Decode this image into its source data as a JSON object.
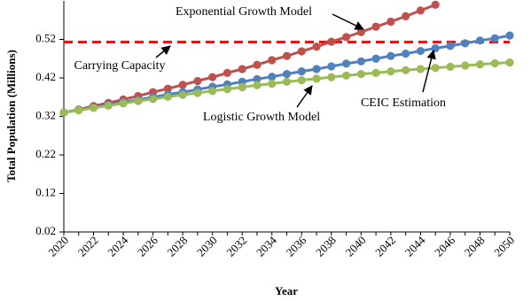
{
  "chart_data": {
    "type": "line",
    "y_label": "Total Population (Millions)",
    "x_label": "Year",
    "x": [
      2020,
      2021,
      2022,
      2023,
      2024,
      2025,
      2026,
      2027,
      2028,
      2029,
      2030,
      2031,
      2032,
      2033,
      2034,
      2035,
      2036,
      2037,
      2038,
      2039,
      2040,
      2041,
      2042,
      2043,
      2044,
      2045,
      2046,
      2047,
      2048,
      2049,
      2050
    ],
    "series": [
      {
        "name": "Exponential Growth Model",
        "color": "#c0504d",
        "values": [
          0.33,
          0.338,
          0.347,
          0.355,
          0.364,
          0.373,
          0.383,
          0.392,
          0.402,
          0.412,
          0.422,
          0.433,
          0.443,
          0.454,
          0.466,
          0.477,
          0.489,
          0.501,
          0.514,
          0.526,
          0.539,
          0.553,
          0.566,
          0.58,
          0.595,
          0.61,
          null,
          null,
          null,
          null,
          null
        ]
      },
      {
        "name": "CEIC Estimation",
        "color": "#4f81bd",
        "values": [
          0.33,
          0.337,
          0.343,
          0.35,
          0.357,
          0.363,
          0.37,
          0.377,
          0.383,
          0.39,
          0.397,
          0.403,
          0.41,
          0.417,
          0.423,
          0.43,
          0.437,
          0.443,
          0.45,
          0.457,
          0.463,
          0.47,
          0.477,
          0.483,
          0.49,
          0.497,
          0.503,
          0.51,
          0.517,
          0.523,
          0.53
        ]
      },
      {
        "name": "Logistic Growth Model",
        "color": "#9bbb59",
        "values": [
          0.33,
          0.336,
          0.342,
          0.348,
          0.354,
          0.36,
          0.365,
          0.371,
          0.376,
          0.381,
          0.386,
          0.391,
          0.396,
          0.401,
          0.405,
          0.41,
          0.414,
          0.418,
          0.422,
          0.426,
          0.43,
          0.433,
          0.437,
          0.44,
          0.443,
          0.446,
          0.449,
          0.452,
          0.455,
          0.458,
          0.46
        ]
      }
    ],
    "reference_line": {
      "name": "Carrying Capacity",
      "value": 0.513,
      "color": "#e0161b"
    },
    "xlim": [
      2020,
      2050
    ],
    "xticks": [
      2020,
      2022,
      2024,
      2026,
      2028,
      2030,
      2032,
      2034,
      2036,
      2038,
      2040,
      2042,
      2044,
      2046,
      2048,
      2050
    ],
    "ylim": [
      0.02,
      0.62
    ],
    "yticks": [
      0.02,
      0.12,
      0.22,
      0.32,
      0.42,
      0.52
    ],
    "grid": false
  }
}
